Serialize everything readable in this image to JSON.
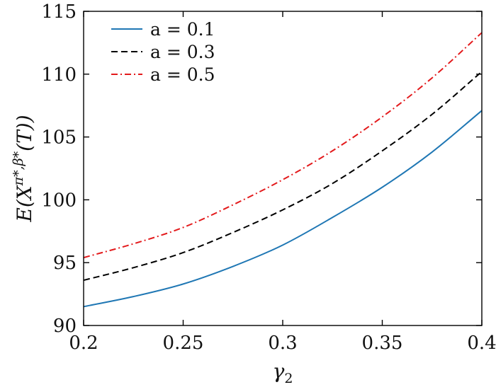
{
  "chart_data": {
    "type": "line",
    "title": "",
    "xlabel": "γ₂",
    "ylabel": "E(Xπ*,β*(T))",
    "xlim": [
      0.2,
      0.4
    ],
    "ylim": [
      90,
      115
    ],
    "x_ticks": [
      0.2,
      0.25,
      0.3,
      0.35,
      0.4
    ],
    "x_tick_labels": [
      "0.2",
      "0.25",
      "0.3",
      "0.35",
      "0.4"
    ],
    "y_ticks": [
      90,
      95,
      100,
      105,
      110,
      115
    ],
    "y_tick_labels": [
      "90",
      "95",
      "100",
      "105",
      "110",
      "115"
    ],
    "grid": false,
    "legend_position": "top-left",
    "x": [
      0.2,
      0.225,
      0.25,
      0.275,
      0.3,
      0.325,
      0.35,
      0.375,
      0.4
    ],
    "series": [
      {
        "name": "a = 0.1",
        "color": "#1f77b4",
        "style": "solid",
        "values": [
          91.5,
          92.3,
          93.3,
          94.7,
          96.4,
          98.6,
          101.0,
          103.8,
          107.1
        ]
      },
      {
        "name": "a = 0.3",
        "color": "#000000",
        "style": "dashed",
        "values": [
          93.6,
          94.6,
          95.8,
          97.4,
          99.2,
          101.3,
          103.9,
          106.8,
          110.2
        ]
      },
      {
        "name": "a = 0.5",
        "color": "#e31a1c",
        "style": "dashdot",
        "values": [
          95.4,
          96.5,
          97.8,
          99.6,
          101.6,
          103.9,
          106.6,
          109.7,
          113.3
        ]
      }
    ]
  }
}
